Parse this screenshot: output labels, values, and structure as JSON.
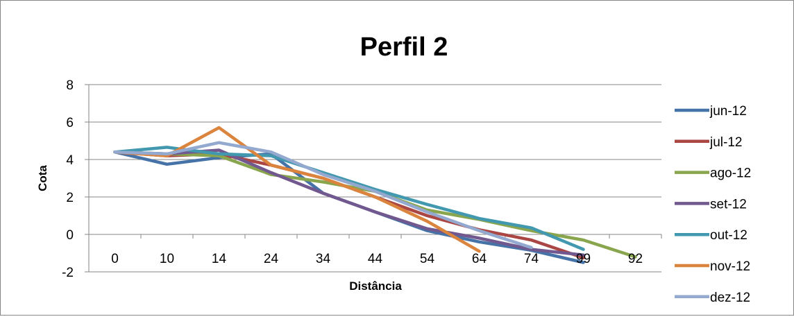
{
  "chart_data": {
    "type": "line",
    "title": "Perfil 2",
    "xlabel": "Distância",
    "ylabel": "Cota",
    "categories": [
      "0",
      "10",
      "14",
      "24",
      "34",
      "44",
      "54",
      "64",
      "74",
      "99",
      "92"
    ],
    "ylim": [
      -2,
      8
    ],
    "yticks": [
      "-2",
      "0",
      "2",
      "4",
      "6",
      "8"
    ],
    "grid": "horizontal",
    "legend_position": "right",
    "series": [
      {
        "name": "jun-12",
        "color": "#4572A7",
        "values": [
          4.4,
          3.75,
          4.1,
          4.3,
          2.2,
          1.2,
          0.2,
          -0.4,
          -0.85,
          -1.5,
          null
        ]
      },
      {
        "name": "jul-12",
        "color": "#AA4643",
        "values": [
          4.4,
          4.2,
          4.3,
          3.7,
          3.0,
          2.0,
          1.0,
          0.25,
          -0.3,
          -1.25,
          null
        ]
      },
      {
        "name": "ago-12",
        "color": "#89A54E",
        "values": [
          4.4,
          4.3,
          4.2,
          3.2,
          2.8,
          2.3,
          1.3,
          0.8,
          0.2,
          -0.3,
          -1.2
        ]
      },
      {
        "name": "set-12",
        "color": "#71588F",
        "values": [
          4.4,
          4.3,
          4.5,
          3.3,
          2.2,
          1.2,
          0.3,
          -0.2,
          -0.8,
          -1.1,
          null
        ]
      },
      {
        "name": "out-12",
        "color": "#4198AF",
        "values": [
          4.4,
          4.65,
          4.3,
          4.2,
          3.3,
          2.4,
          1.6,
          0.85,
          0.35,
          -0.8,
          null
        ]
      },
      {
        "name": "nov-12",
        "color": "#DB843D",
        "values": [
          4.4,
          4.2,
          5.7,
          3.7,
          3.0,
          2.0,
          0.7,
          -0.9,
          null,
          null,
          null
        ]
      },
      {
        "name": "dez-12",
        "color": "#93A9CF",
        "values": [
          4.4,
          4.3,
          4.9,
          4.4,
          3.2,
          2.3,
          1.2,
          0.2,
          -0.7,
          null,
          null
        ]
      }
    ]
  }
}
